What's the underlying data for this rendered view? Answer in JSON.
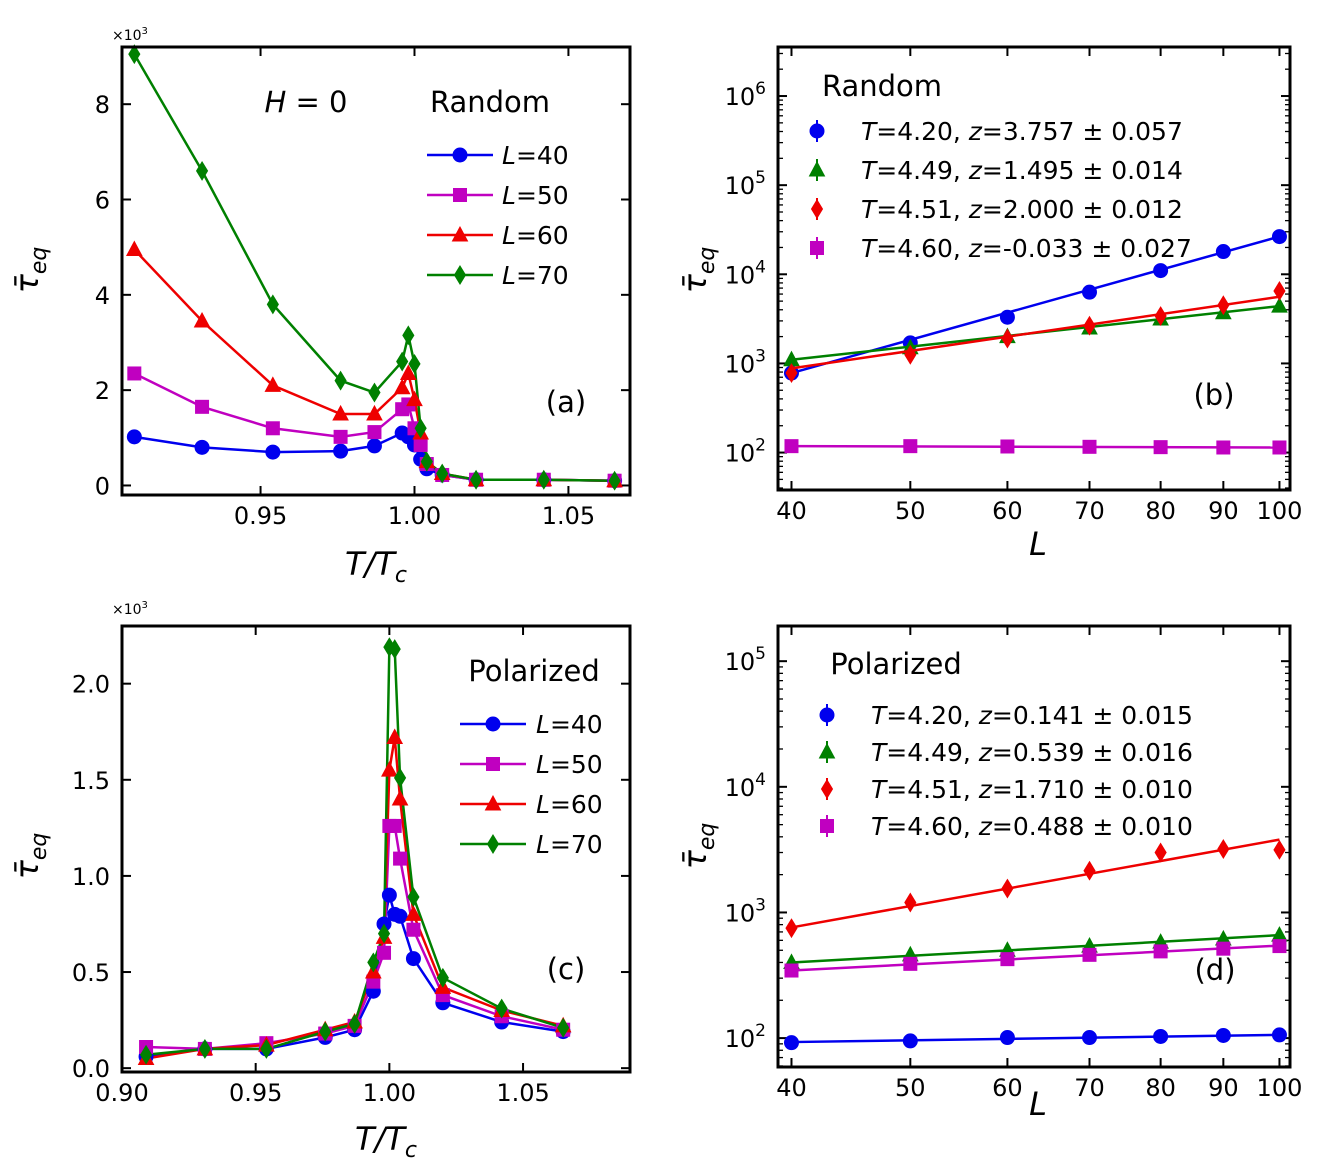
{
  "chart_data": [
    {
      "id": "a",
      "type": "line",
      "panel_label": "(a)",
      "annotation": "H = 0",
      "legend_title": "Random",
      "xlabel": "T/Tc",
      "ylabel": "τ̄eq",
      "y_multiplier": "×10³",
      "xlim": [
        0.905,
        1.07
      ],
      "ylim": [
        -0.2,
        9.2
      ],
      "xticks": [
        0.95,
        1.0,
        1.05
      ],
      "xtick_labels": [
        "0.95",
        "1.00",
        "1.05"
      ],
      "yticks": [
        0,
        2,
        4,
        6,
        8
      ],
      "ytick_labels": [
        "0",
        "2",
        "4",
        "6",
        "8"
      ],
      "x": [
        0.909,
        0.931,
        0.954,
        0.976,
        0.987,
        0.996,
        0.998,
        1.0,
        1.002,
        1.004,
        1.009,
        1.02,
        1.042,
        1.065
      ],
      "series": [
        {
          "name": "L=40",
          "label_var": "L",
          "label_val": "=40",
          "color": "#0000ee",
          "marker": "circle",
          "values": [
            1.02,
            0.8,
            0.7,
            0.72,
            0.83,
            1.1,
            1.02,
            0.85,
            0.55,
            0.35,
            0.22,
            0.12,
            0.12,
            0.1
          ]
        },
        {
          "name": "L=50",
          "label_var": "L",
          "label_val": "=50",
          "color": "#c000c0",
          "marker": "square",
          "values": [
            2.35,
            1.65,
            1.2,
            1.02,
            1.12,
            1.6,
            1.7,
            1.2,
            0.85,
            0.45,
            0.22,
            0.12,
            0.12,
            0.1
          ]
        },
        {
          "name": "L=60",
          "label_var": "L",
          "label_val": "=60",
          "color": "#ee0000",
          "marker": "triangle",
          "values": [
            4.95,
            3.45,
            2.1,
            1.5,
            1.5,
            2.05,
            2.35,
            1.8,
            1.1,
            0.5,
            0.25,
            0.12,
            0.12,
            0.1
          ]
        },
        {
          "name": "L=70",
          "label_var": "L",
          "label_val": "=70",
          "color": "#008000",
          "marker": "diamond",
          "values": [
            9.05,
            6.6,
            3.8,
            2.2,
            1.95,
            2.6,
            3.15,
            2.55,
            1.2,
            0.5,
            0.25,
            0.12,
            0.12,
            0.1
          ]
        }
      ]
    },
    {
      "id": "b",
      "type": "scatter",
      "panel_label": "(b)",
      "legend_title": "Random",
      "xlabel": "L",
      "ylabel": "τ̄eq",
      "xscale": "log",
      "yscale": "log",
      "xlim": [
        39,
        102
      ],
      "ylim_log10": [
        1.58,
        6.55
      ],
      "xticks": [
        40,
        50,
        60,
        70,
        80,
        90,
        100
      ],
      "xtick_labels": [
        "40",
        "50",
        "60",
        "70",
        "80",
        "90",
        "100"
      ],
      "yticks_exp": [
        2,
        3,
        4,
        5,
        6
      ],
      "ytick_base": "10",
      "x": [
        40,
        50,
        60,
        70,
        80,
        90,
        100
      ],
      "series": [
        {
          "name": "T=4.20, z=3.757 ± 0.057",
          "t_val": "=4.20, ",
          "z_val": "=3.757 ± 0.057",
          "color": "#0000ee",
          "marker": "circle",
          "values": [
            780,
            1700,
            3300,
            6300,
            11000,
            18000,
            26500
          ],
          "fit_start": 780,
          "fit_end": 26500
        },
        {
          "name": "T=4.49, z=1.495 ± 0.014",
          "t_val": "=4.49, ",
          "z_val": "=1.495 ± 0.014",
          "color": "#008000",
          "marker": "triangle",
          "values": [
            1100,
            1500,
            2000,
            2500,
            3150,
            3700,
            4400
          ],
          "fit_start": 1100,
          "fit_end": 4400
        },
        {
          "name": "T=4.51, z=2.000 ± 0.012",
          "t_val": "=4.51, ",
          "z_val": "=2.000 ± 0.012",
          "color": "#ee0000",
          "marker": "diamond",
          "values": [
            780,
            1250,
            1900,
            2650,
            3400,
            4500,
            6500
          ],
          "fit_start": 880,
          "fit_end": 5600
        },
        {
          "name": "T=4.60, z=-0.033 ± 0.027",
          "t_val": "=4.60, ",
          "z_val": "=-0.033 ± 0.027",
          "color": "#c000c0",
          "marker": "square",
          "values": [
            118,
            118,
            117,
            116,
            115,
            114,
            114
          ],
          "fit_start": 118,
          "fit_end": 114
        }
      ]
    },
    {
      "id": "c",
      "type": "line",
      "panel_label": "(c)",
      "legend_title": "Polarized",
      "xlabel": "T/Tc",
      "ylabel": "τ̄eq",
      "y_multiplier": "×10³",
      "xlim": [
        0.9,
        1.09
      ],
      "ylim": [
        -0.02,
        2.3
      ],
      "xticks": [
        0.9,
        0.95,
        1.0,
        1.05
      ],
      "xtick_labels": [
        "0.90",
        "0.95",
        "1.00",
        "1.05"
      ],
      "yticks": [
        0.0,
        0.5,
        1.0,
        1.5,
        2.0
      ],
      "ytick_labels": [
        "0.0",
        "0.5",
        "1.0",
        "1.5",
        "2.0"
      ],
      "x": [
        0.909,
        0.931,
        0.954,
        0.976,
        0.987,
        0.994,
        0.998,
        1.0,
        1.002,
        1.004,
        1.009,
        1.02,
        1.042,
        1.065
      ],
      "series": [
        {
          "name": "L=40",
          "label_var": "L",
          "label_val": "=40",
          "color": "#0000ee",
          "marker": "circle",
          "values": [
            0.06,
            0.1,
            0.1,
            0.16,
            0.2,
            0.4,
            0.75,
            0.9,
            0.8,
            0.79,
            0.57,
            0.34,
            0.24,
            0.19
          ]
        },
        {
          "name": "L=50",
          "label_var": "L",
          "label_val": "=50",
          "color": "#c000c0",
          "marker": "square",
          "values": [
            0.11,
            0.1,
            0.13,
            0.18,
            0.22,
            0.45,
            0.6,
            1.26,
            1.26,
            1.09,
            0.72,
            0.38,
            0.27,
            0.2
          ]
        },
        {
          "name": "L=60",
          "label_var": "L",
          "label_val": "=60",
          "color": "#ee0000",
          "marker": "triangle",
          "values": [
            0.05,
            0.1,
            0.12,
            0.2,
            0.24,
            0.5,
            0.68,
            1.55,
            1.72,
            1.4,
            0.8,
            0.42,
            0.3,
            0.22
          ]
        },
        {
          "name": "L=70",
          "label_var": "L",
          "label_val": "=70",
          "color": "#008000",
          "marker": "diamond",
          "values": [
            0.07,
            0.1,
            0.1,
            0.19,
            0.23,
            0.55,
            0.7,
            2.19,
            2.18,
            1.51,
            0.89,
            0.47,
            0.31,
            0.21
          ]
        }
      ]
    },
    {
      "id": "d",
      "type": "scatter",
      "panel_label": "(d)",
      "legend_title": "Polarized",
      "xlabel": "L",
      "ylabel": "τ̄eq",
      "xscale": "log",
      "yscale": "log",
      "xlim": [
        39,
        102
      ],
      "ylim_log10": [
        1.77,
        5.28
      ],
      "xticks": [
        40,
        50,
        60,
        70,
        80,
        90,
        100
      ],
      "xtick_labels": [
        "40",
        "50",
        "60",
        "70",
        "80",
        "90",
        "100"
      ],
      "yticks_exp": [
        2,
        3,
        4,
        5
      ],
      "ytick_base": "10",
      "x": [
        40,
        50,
        60,
        70,
        80,
        90,
        100
      ],
      "series": [
        {
          "name": "T=4.20, z=0.141 ± 0.015",
          "t_val": "=4.20, ",
          "z_val": "=0.141 ± 0.015",
          "color": "#0000ee",
          "marker": "circle",
          "values": [
            92,
            95,
            101,
            101,
            103,
            105,
            106
          ],
          "fit_start": 93,
          "fit_end": 106
        },
        {
          "name": "T=4.49, z=0.539 ± 0.016",
          "t_val": "=4.49, ",
          "z_val": "=0.539 ± 0.016",
          "color": "#008000",
          "marker": "triangle",
          "values": [
            400,
            460,
            500,
            540,
            580,
            615,
            660
          ],
          "fit_start": 400,
          "fit_end": 660
        },
        {
          "name": "T=4.51, z=1.710 ± 0.010",
          "t_val": "=4.51, ",
          "z_val": "=1.710 ± 0.010",
          "color": "#ee0000",
          "marker": "diamond",
          "values": [
            750,
            1200,
            1550,
            2150,
            3000,
            3200,
            3150
          ],
          "fit_start": 760,
          "fit_end": 3800
        },
        {
          "name": "T=4.60, z=0.488 ± 0.010",
          "t_val": "=4.60, ",
          "z_val": "=0.488 ± 0.010",
          "color": "#c000c0",
          "marker": "square",
          "values": [
            345,
            390,
            425,
            460,
            490,
            515,
            540
          ],
          "fit_start": 345,
          "fit_end": 545
        }
      ]
    }
  ]
}
